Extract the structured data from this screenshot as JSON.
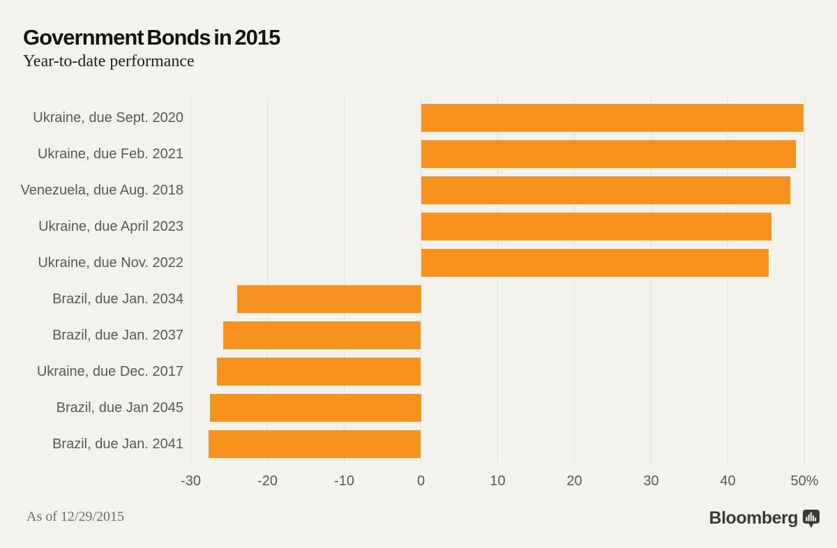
{
  "header": {
    "title": "Government Bonds in 2015",
    "subtitle": "Year-to-date performance"
  },
  "footer": {
    "as_of": "As of 12/29/2015",
    "brand": "Bloomberg"
  },
  "colors": {
    "background": "#f3f2ec",
    "bar": "#f8921e",
    "grid": "#dfdfe2",
    "title": "#131313",
    "label": "#57585b",
    "brand": "#3a3a3c"
  },
  "chart_data": {
    "type": "bar",
    "orientation": "horizontal",
    "title": "Government Bonds in 2015",
    "subtitle": "Year-to-date performance",
    "unit": "%",
    "categories": [
      "Ukraine, due Sept. 2020",
      "Ukraine, due Feb. 2021",
      "Venezuela, due Aug. 2018",
      "Ukraine, due April 2023",
      "Ukraine, due Nov. 2022",
      "Brazil, due Jan. 2034",
      "Brazil, due Jan. 2037",
      "Ukraine, due Dec. 2017",
      "Brazil, due Jan 2045",
      "Brazil, due Jan. 2041"
    ],
    "values": [
      49.9,
      48.9,
      48.1,
      45.7,
      45.3,
      -24.0,
      -25.8,
      -26.6,
      -27.5,
      -27.7
    ],
    "xlim": [
      -30,
      50
    ],
    "xticks": [
      -30,
      -20,
      -10,
      0,
      10,
      20,
      30,
      40,
      50
    ],
    "xtick_labels": [
      "-30",
      "-20",
      "-10",
      "0",
      "10",
      "20",
      "30",
      "40",
      "50%"
    ],
    "grid": "vertical",
    "legend": "none",
    "annotation": "As of 12/29/2015"
  }
}
